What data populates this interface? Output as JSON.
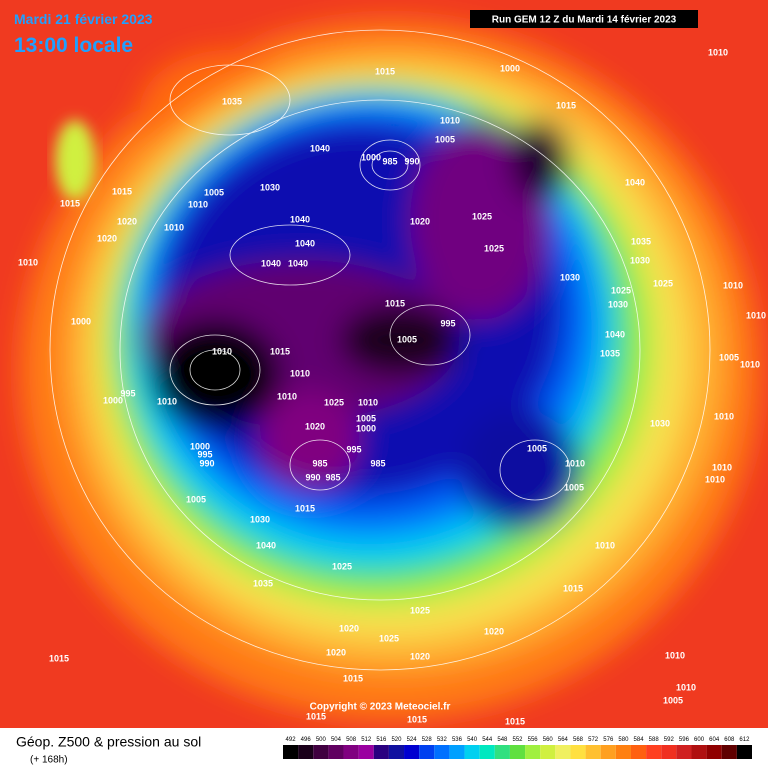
{
  "header": {
    "date": "Mardi 21 février 2023",
    "time": "13:00 locale",
    "run": "Run GEM 12 Z du Mardi 14 février 2023"
  },
  "map": {
    "copyright": "Copyright © 2023 Meteociel.fr",
    "pressure_labels": [
      "1015",
      "1000",
      "1035",
      "1010",
      "1015",
      "1010",
      "1005",
      "1000",
      "985",
      "990",
      "1040",
      "1015",
      "1015",
      "1005",
      "1030",
      "1010",
      "1020",
      "1010",
      "1040",
      "1020",
      "1025",
      "1040",
      "1035",
      "1020",
      "1040",
      "1025",
      "1030",
      "1010",
      "1040",
      "1040",
      "1030",
      "1025",
      "1025",
      "1030",
      "1010",
      "1015",
      "1000",
      "995",
      "1040",
      "1010",
      "1005",
      "1010",
      "1015",
      "1035",
      "1005",
      "1010",
      "1010",
      "995",
      "1000",
      "1010",
      "1010",
      "1025",
      "1010",
      "1005",
      "1000",
      "1010",
      "1020",
      "1030",
      "1000",
      "995",
      "990",
      "995",
      "985",
      "985",
      "1005",
      "1010",
      "990",
      "985",
      "1010",
      "1005",
      "1010",
      "1005",
      "1015",
      "1030",
      "1040",
      "1010",
      "1025",
      "1035",
      "1015",
      "1025",
      "1020",
      "1025",
      "1020",
      "1020",
      "1020",
      "1010",
      "1015",
      "1015",
      "1010",
      "1005",
      "1015",
      "1015",
      "1015"
    ]
  },
  "footer": {
    "title": "Géop. Z500 & pression au sol",
    "lead": "(+ 168h)",
    "scale": {
      "values": [
        492,
        496,
        500,
        504,
        508,
        512,
        516,
        520,
        524,
        528,
        532,
        536,
        540,
        544,
        548,
        552,
        556,
        560,
        564,
        568,
        572,
        576,
        580,
        584,
        588,
        592,
        596,
        600,
        604,
        608,
        612
      ],
      "colors": [
        "#000000",
        "#1a001a",
        "#400040",
        "#600060",
        "#800080",
        "#9a00a0",
        "#2a0080",
        "#1010a0",
        "#0000d0",
        "#0040f0",
        "#0070ff",
        "#00a0ff",
        "#00d0f0",
        "#00e8c0",
        "#30e080",
        "#60e040",
        "#a0f040",
        "#d0f040",
        "#f0f060",
        "#ffe040",
        "#ffc030",
        "#ffa020",
        "#ff8010",
        "#ff6010",
        "#ff4020",
        "#f03020",
        "#d02020",
        "#b01010",
        "#900000",
        "#600000",
        "#000000"
      ]
    }
  }
}
